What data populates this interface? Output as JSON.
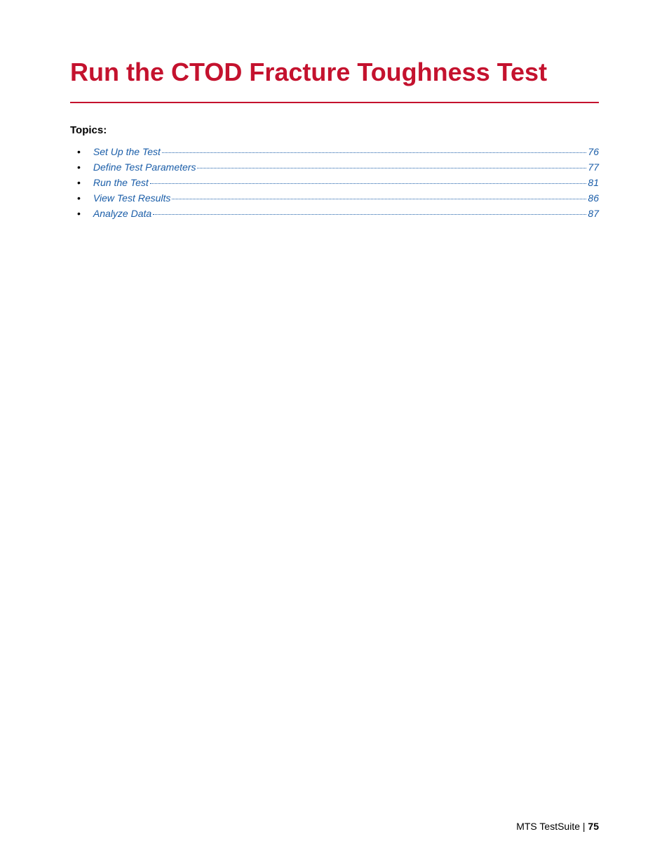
{
  "title": "Run the CTOD Fracture Toughness Test",
  "topics_label": "Topics:",
  "toc": [
    {
      "label": "Set Up the Test",
      "page": "76"
    },
    {
      "label": "Define Test Parameters",
      "page": "77"
    },
    {
      "label": "Run the Test",
      "page": "81"
    },
    {
      "label": "View Test Results",
      "page": "86"
    },
    {
      "label": "Analyze Data",
      "page": "87"
    }
  ],
  "footer": {
    "product": "MTS TestSuite",
    "separator": " | ",
    "page": "75"
  },
  "colors": {
    "title": "#c4122e",
    "link": "#1a5da8",
    "body_text": "#000000",
    "background": "#ffffff"
  },
  "typography": {
    "title_fontsize": 36,
    "label_fontsize": 15,
    "toc_fontsize": 14,
    "footer_fontsize": 14,
    "font_family": "Arial, Helvetica, sans-serif"
  }
}
